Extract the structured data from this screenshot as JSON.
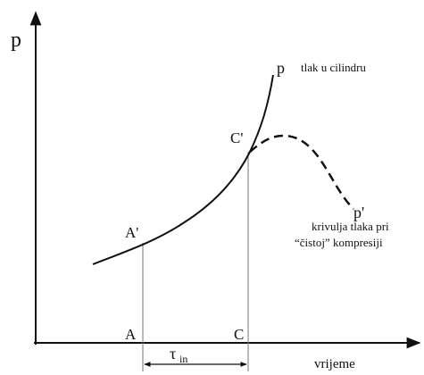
{
  "axes": {
    "y_label": "p",
    "x_label": "vrijeme"
  },
  "curves": {
    "cylinder": {
      "label": "p",
      "caption": "tlak u cilindru"
    },
    "pure_compression": {
      "label": "p'",
      "caption_line1": "krivulja tlaka pri",
      "caption_line2": "“čistoj” kompresiji"
    }
  },
  "points": {
    "a_prime": "A'",
    "c_prime": "C'",
    "a": "A",
    "c": "C"
  },
  "interval": {
    "symbol": "τ",
    "subscript": "in"
  }
}
